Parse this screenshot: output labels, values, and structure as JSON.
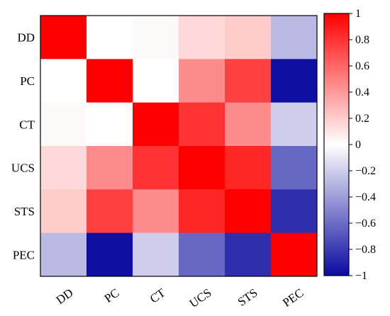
{
  "chart_data": {
    "type": "heatmap",
    "title": "",
    "xlabel": "",
    "ylabel": "",
    "x_categories": [
      "DD",
      "PC",
      "CT",
      "UCS",
      "STS",
      "PEC"
    ],
    "y_categories": [
      "DD",
      "PC",
      "CT",
      "UCS",
      "STS",
      "PEC"
    ],
    "values": [
      [
        1.0,
        0.0,
        0.02,
        0.15,
        0.2,
        -0.28
      ],
      [
        0.0,
        1.0,
        0.0,
        0.45,
        0.75,
        -0.98
      ],
      [
        0.02,
        0.0,
        1.0,
        0.8,
        0.45,
        -0.2
      ],
      [
        0.15,
        0.45,
        0.8,
        1.0,
        0.85,
        -0.62
      ],
      [
        0.2,
        0.75,
        0.45,
        0.85,
        1.0,
        -0.85
      ],
      [
        -0.28,
        -0.98,
        -0.2,
        -0.62,
        -0.85,
        1.0
      ]
    ],
    "colorbar": {
      "range": [
        -1,
        1
      ],
      "ticks": [
        "1",
        "0.8",
        "0.6",
        "0.4",
        "0.2",
        "0",
        "−0.2",
        "−0.4",
        "−0.6",
        "−0.8",
        "−1"
      ],
      "colors": {
        "negative": "#0a0aa0",
        "zero": "#ffffff",
        "positive": "#ff0000"
      }
    }
  }
}
